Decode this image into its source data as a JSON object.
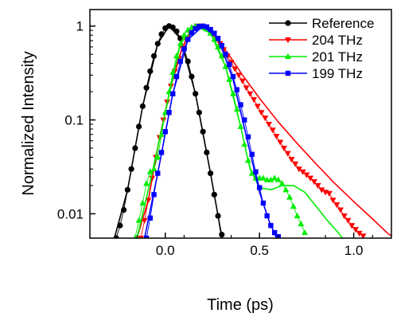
{
  "chart_data": {
    "type": "line",
    "xlabel": "Time (ps)",
    "ylabel": "Normalized Intensity",
    "xlim": [
      -0.4,
      1.2
    ],
    "ylim": [
      0.0055,
      1.5
    ],
    "yscale": "log",
    "grid": false,
    "legend_position": "top-right",
    "x_ticks": [
      {
        "value": 0.0,
        "label": "0.0"
      },
      {
        "value": 0.5,
        "label": "0.5"
      },
      {
        "value": 1.0,
        "label": "1.0"
      }
    ],
    "y_ticks": [
      {
        "value": 1,
        "label": "1"
      },
      {
        "value": 0.1,
        "label": "0.1"
      },
      {
        "value": 0.01,
        "label": "0.01"
      }
    ],
    "series": [
      {
        "name": "Reference",
        "color": "#000000",
        "marker": "circle",
        "points": [
          [
            -0.26,
            0.0055
          ],
          [
            -0.24,
            0.0075
          ],
          [
            -0.22,
            0.011
          ],
          [
            -0.2,
            0.018
          ],
          [
            -0.18,
            0.03
          ],
          [
            -0.16,
            0.05
          ],
          [
            -0.14,
            0.085
          ],
          [
            -0.12,
            0.14
          ],
          [
            -0.1,
            0.22
          ],
          [
            -0.08,
            0.33
          ],
          [
            -0.06,
            0.48
          ],
          [
            -0.04,
            0.65
          ],
          [
            -0.02,
            0.82
          ],
          [
            0.0,
            0.95
          ],
          [
            0.02,
            1.0
          ],
          [
            0.04,
            0.97
          ],
          [
            0.06,
            0.88
          ],
          [
            0.08,
            0.74
          ],
          [
            0.1,
            0.58
          ],
          [
            0.12,
            0.42
          ],
          [
            0.14,
            0.29
          ],
          [
            0.16,
            0.19
          ],
          [
            0.18,
            0.12
          ],
          [
            0.2,
            0.075
          ],
          [
            0.22,
            0.045
          ],
          [
            0.24,
            0.027
          ],
          [
            0.26,
            0.016
          ],
          [
            0.28,
            0.0095
          ],
          [
            0.3,
            0.006
          ]
        ],
        "fit": [
          [
            -0.27,
            0.0055
          ],
          [
            -0.2,
            0.018
          ],
          [
            -0.12,
            0.14
          ],
          [
            -0.04,
            0.65
          ],
          [
            0.02,
            1.0
          ],
          [
            0.08,
            0.74
          ],
          [
            0.16,
            0.19
          ],
          [
            0.24,
            0.027
          ],
          [
            0.28,
            0.0095
          ],
          [
            0.3,
            0.0055
          ]
        ]
      },
      {
        "name": "204 THz",
        "color": "#ff0000",
        "marker": "triangle-down",
        "points": [
          [
            -0.13,
            0.0055
          ],
          [
            -0.11,
            0.0085
          ],
          [
            -0.09,
            0.014
          ],
          [
            -0.07,
            0.024
          ],
          [
            -0.05,
            0.04
          ],
          [
            -0.03,
            0.065
          ],
          [
            -0.01,
            0.1
          ],
          [
            0.01,
            0.155
          ],
          [
            0.03,
            0.23
          ],
          [
            0.05,
            0.33
          ],
          [
            0.07,
            0.45
          ],
          [
            0.09,
            0.59
          ],
          [
            0.11,
            0.73
          ],
          [
            0.13,
            0.86
          ],
          [
            0.15,
            0.95
          ],
          [
            0.17,
            1.0
          ],
          [
            0.19,
            1.0
          ],
          [
            0.21,
            0.97
          ],
          [
            0.23,
            0.91
          ],
          [
            0.25,
            0.83
          ],
          [
            0.27,
            0.74
          ],
          [
            0.29,
            0.65
          ],
          [
            0.31,
            0.56
          ],
          [
            0.33,
            0.48
          ],
          [
            0.35,
            0.41
          ],
          [
            0.37,
            0.35
          ],
          [
            0.39,
            0.3
          ],
          [
            0.41,
            0.26
          ],
          [
            0.43,
            0.22
          ],
          [
            0.45,
            0.19
          ],
          [
            0.47,
            0.165
          ],
          [
            0.49,
            0.14
          ],
          [
            0.51,
            0.12
          ],
          [
            0.53,
            0.105
          ],
          [
            0.55,
            0.09
          ],
          [
            0.57,
            0.078
          ],
          [
            0.59,
            0.067
          ],
          [
            0.61,
            0.058
          ],
          [
            0.63,
            0.05
          ],
          [
            0.65,
            0.044
          ],
          [
            0.67,
            0.038
          ],
          [
            0.69,
            0.034
          ],
          [
            0.71,
            0.03
          ],
          [
            0.73,
            0.028
          ],
          [
            0.75,
            0.026
          ],
          [
            0.77,
            0.024
          ],
          [
            0.79,
            0.022
          ],
          [
            0.81,
            0.02
          ],
          [
            0.83,
            0.018
          ],
          [
            0.85,
            0.017
          ],
          [
            0.87,
            0.0165
          ],
          [
            0.89,
            0.014
          ],
          [
            0.91,
            0.0125
          ],
          [
            0.93,
            0.011
          ],
          [
            0.95,
            0.0095
          ],
          [
            0.97,
            0.0085
          ],
          [
            0.99,
            0.0075
          ],
          [
            1.01,
            0.0068
          ],
          [
            1.03,
            0.0062
          ],
          [
            1.05,
            0.0058
          ]
        ],
        "fit": [
          [
            -0.15,
            0.0055
          ],
          [
            -0.09,
            0.014
          ],
          [
            -0.03,
            0.065
          ],
          [
            0.03,
            0.23
          ],
          [
            0.09,
            0.59
          ],
          [
            0.15,
            0.95
          ],
          [
            0.19,
            1.0
          ],
          [
            0.25,
            0.85
          ],
          [
            0.33,
            0.52
          ],
          [
            0.41,
            0.3
          ],
          [
            0.5,
            0.17
          ],
          [
            0.6,
            0.095
          ],
          [
            0.7,
            0.056
          ],
          [
            0.8,
            0.034
          ],
          [
            0.9,
            0.021
          ],
          [
            1.0,
            0.0135
          ],
          [
            1.1,
            0.0088
          ],
          [
            1.18,
            0.0062
          ],
          [
            1.2,
            0.0058
          ]
        ]
      },
      {
        "name": "201 THz",
        "color": "#00ee00",
        "marker": "triangle-up",
        "points": [
          [
            -0.16,
            0.0055
          ],
          [
            -0.14,
            0.0085
          ],
          [
            -0.12,
            0.013
          ],
          [
            -0.1,
            0.021
          ],
          [
            -0.08,
            0.028
          ],
          [
            -0.06,
            0.03
          ],
          [
            -0.04,
            0.04
          ],
          [
            -0.02,
            0.07
          ],
          [
            0.0,
            0.12
          ],
          [
            0.02,
            0.2
          ],
          [
            0.04,
            0.32
          ],
          [
            0.06,
            0.48
          ],
          [
            0.08,
            0.65
          ],
          [
            0.1,
            0.8
          ],
          [
            0.12,
            0.91
          ],
          [
            0.14,
            0.97
          ],
          [
            0.16,
            1.0
          ],
          [
            0.18,
            1.0
          ],
          [
            0.2,
            0.98
          ],
          [
            0.22,
            0.93
          ],
          [
            0.24,
            0.84
          ],
          [
            0.26,
            0.72
          ],
          [
            0.28,
            0.6
          ],
          [
            0.3,
            0.48
          ],
          [
            0.32,
            0.37
          ],
          [
            0.34,
            0.27
          ],
          [
            0.36,
            0.19
          ],
          [
            0.38,
            0.13
          ],
          [
            0.4,
            0.085
          ],
          [
            0.42,
            0.055
          ],
          [
            0.44,
            0.037
          ],
          [
            0.46,
            0.027
          ],
          [
            0.48,
            0.024
          ],
          [
            0.5,
            0.024
          ],
          [
            0.52,
            0.024
          ],
          [
            0.54,
            0.023
          ],
          [
            0.56,
            0.023
          ],
          [
            0.58,
            0.024
          ],
          [
            0.6,
            0.023
          ],
          [
            0.62,
            0.021
          ],
          [
            0.64,
            0.018
          ],
          [
            0.66,
            0.015
          ],
          [
            0.68,
            0.012
          ],
          [
            0.7,
            0.0095
          ],
          [
            0.72,
            0.0078
          ],
          [
            0.74,
            0.0063
          ]
        ],
        "fit": [
          [
            -0.15,
            0.0055
          ],
          [
            -0.08,
            0.022
          ],
          [
            0.0,
            0.12
          ],
          [
            0.08,
            0.65
          ],
          [
            0.16,
            1.0
          ],
          [
            0.24,
            0.84
          ],
          [
            0.32,
            0.37
          ],
          [
            0.4,
            0.085
          ],
          [
            0.45,
            0.03
          ],
          [
            0.5,
            0.019
          ],
          [
            0.56,
            0.018
          ],
          [
            0.62,
            0.02
          ],
          [
            0.68,
            0.02
          ],
          [
            0.74,
            0.017
          ],
          [
            0.8,
            0.012
          ],
          [
            0.86,
            0.0085
          ],
          [
            0.92,
            0.0062
          ],
          [
            0.94,
            0.0055
          ]
        ]
      },
      {
        "name": "199 THz",
        "color": "#0000ff",
        "marker": "square",
        "points": [
          [
            -0.1,
            0.0055
          ],
          [
            -0.08,
            0.009
          ],
          [
            -0.06,
            0.016
          ],
          [
            -0.04,
            0.027
          ],
          [
            -0.02,
            0.045
          ],
          [
            0.0,
            0.075
          ],
          [
            0.02,
            0.12
          ],
          [
            0.04,
            0.19
          ],
          [
            0.06,
            0.29
          ],
          [
            0.08,
            0.42
          ],
          [
            0.1,
            0.57
          ],
          [
            0.12,
            0.72
          ],
          [
            0.14,
            0.85
          ],
          [
            0.16,
            0.94
          ],
          [
            0.18,
            0.99
          ],
          [
            0.2,
            1.0
          ],
          [
            0.22,
            0.98
          ],
          [
            0.24,
            0.92
          ],
          [
            0.26,
            0.84
          ],
          [
            0.28,
            0.74
          ],
          [
            0.3,
            0.62
          ],
          [
            0.32,
            0.5
          ],
          [
            0.34,
            0.39
          ],
          [
            0.36,
            0.29
          ],
          [
            0.38,
            0.21
          ],
          [
            0.4,
            0.145
          ],
          [
            0.42,
            0.1
          ],
          [
            0.44,
            0.066
          ],
          [
            0.46,
            0.043
          ],
          [
            0.48,
            0.028
          ],
          [
            0.5,
            0.019
          ],
          [
            0.52,
            0.013
          ],
          [
            0.54,
            0.0095
          ],
          [
            0.56,
            0.0075
          ],
          [
            0.58,
            0.0063
          ],
          [
            0.6,
            0.0057
          ]
        ],
        "fit": [
          [
            -0.11,
            0.0055
          ],
          [
            -0.04,
            0.027
          ],
          [
            0.04,
            0.19
          ],
          [
            0.12,
            0.72
          ],
          [
            0.2,
            1.0
          ],
          [
            0.28,
            0.74
          ],
          [
            0.36,
            0.27
          ],
          [
            0.44,
            0.055
          ],
          [
            0.5,
            0.017
          ],
          [
            0.55,
            0.0085
          ],
          [
            0.59,
            0.0055
          ]
        ]
      }
    ]
  }
}
